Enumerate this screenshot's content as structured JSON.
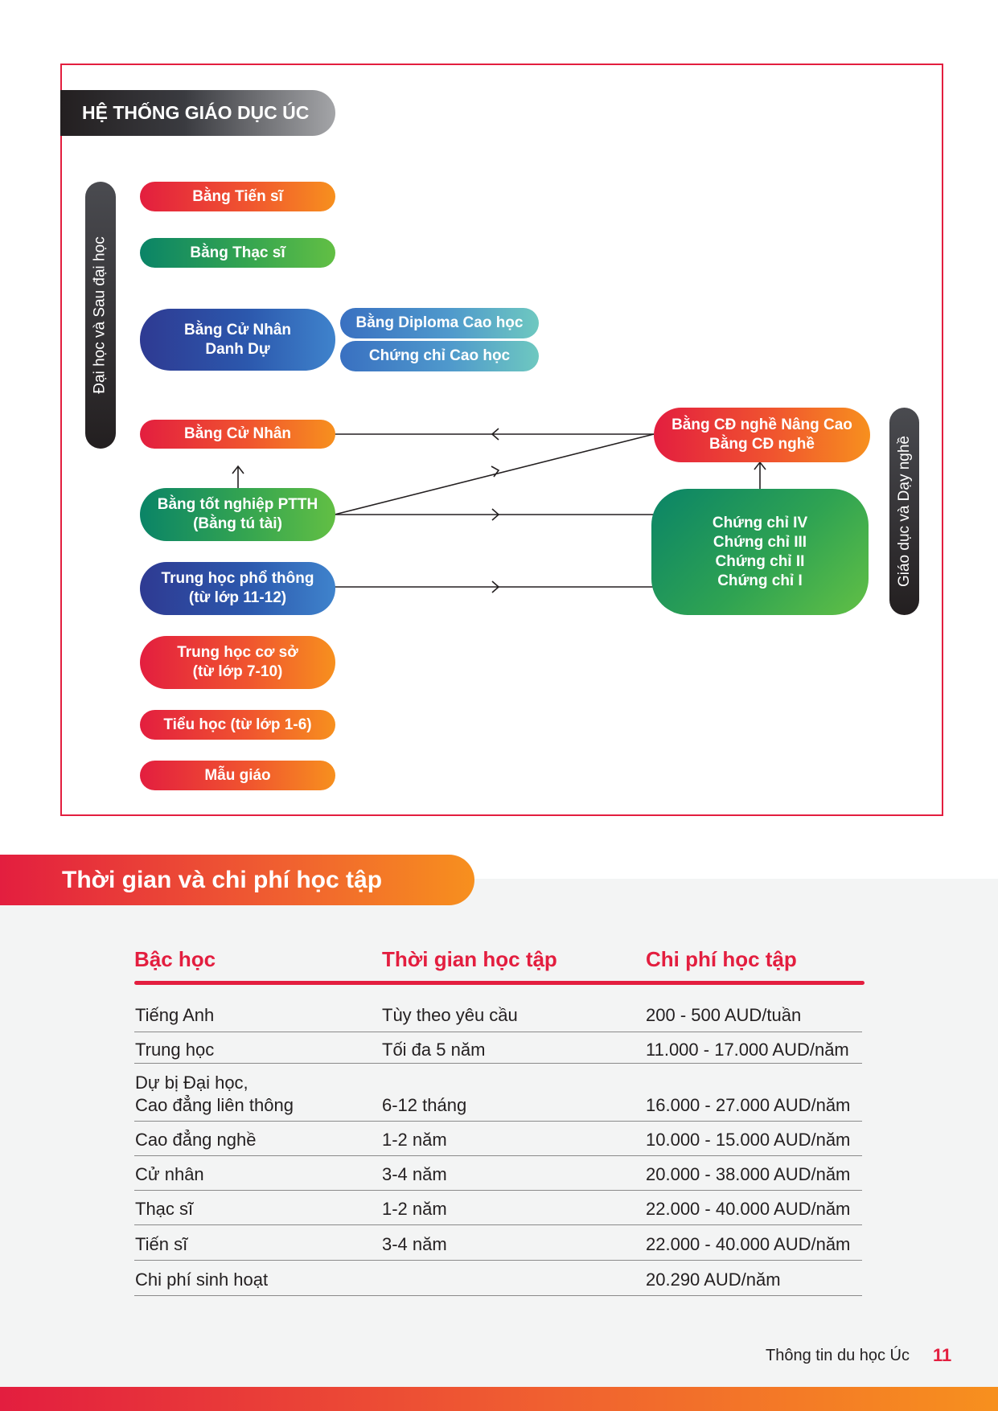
{
  "diagram": {
    "title": "HỆ THỐNG GIÁO DỤC ÚC",
    "left_axis_label": "Đại học và Sau đại học",
    "right_axis_label": "Giáo dục và Dạy nghề",
    "nodes": {
      "doctorate": "Bằng Tiến sĩ",
      "masters": "Bằng Thạc sĩ",
      "honours": "Bằng Cử Nhân\nDanh Dự",
      "grad_diploma": "Bằng Diploma Cao học",
      "grad_certificate": "Chứng chỉ Cao học",
      "bachelor": "Bằng Cử Nhân",
      "advanced_diploma": "Bằng CĐ nghề Nâng Cao\nBằng CĐ nghề",
      "hsc": "Bằng tốt nghiệp PTTH\n(Bằng tú tài)",
      "certificates": "Chứng chỉ IV\nChứng chỉ III\nChứng chỉ II\nChứng chỉ I",
      "senior_secondary": "Trung học phổ thông\n(từ lớp 11-12)",
      "junior_secondary": "Trung học cơ sở\n(từ lớp 7-10)",
      "primary": "Tiểu học  (từ lớp 1-6)",
      "kindergarten": "Mẫu giáo"
    }
  },
  "costs": {
    "section_title": "Thời gian và chi phí học tập",
    "headers": [
      "Bậc học",
      "Thời gian học tập",
      "Chi phí học tập"
    ],
    "rows": [
      [
        "Tiếng Anh",
        "Tùy theo yêu cầu",
        "200 - 500 AUD/tuần"
      ],
      [
        "Trung học",
        "Tối đa 5 năm",
        "11.000 - 17.000 AUD/năm"
      ],
      [
        "Dự bị Đại học,\nCao đẳng liên thông",
        "6-12 tháng",
        "16.000 - 27.000 AUD/năm"
      ],
      [
        "Cao đẳng nghề",
        "1-2 năm",
        "10.000 - 15.000 AUD/năm"
      ],
      [
        "Cử nhân",
        "3-4 năm",
        "20.000 - 38.000 AUD/năm"
      ],
      [
        "Thạc sĩ",
        "1-2 năm",
        "22.000 - 40.000 AUD/năm"
      ],
      [
        "Tiến sĩ",
        "3-4 năm",
        "22.000 - 40.000 AUD/năm"
      ],
      [
        "Chi phí sinh hoạt",
        "",
        "20.290  AUD/năm"
      ]
    ]
  },
  "footer": {
    "text": "Thông tin du học Úc",
    "page_number": "11"
  }
}
